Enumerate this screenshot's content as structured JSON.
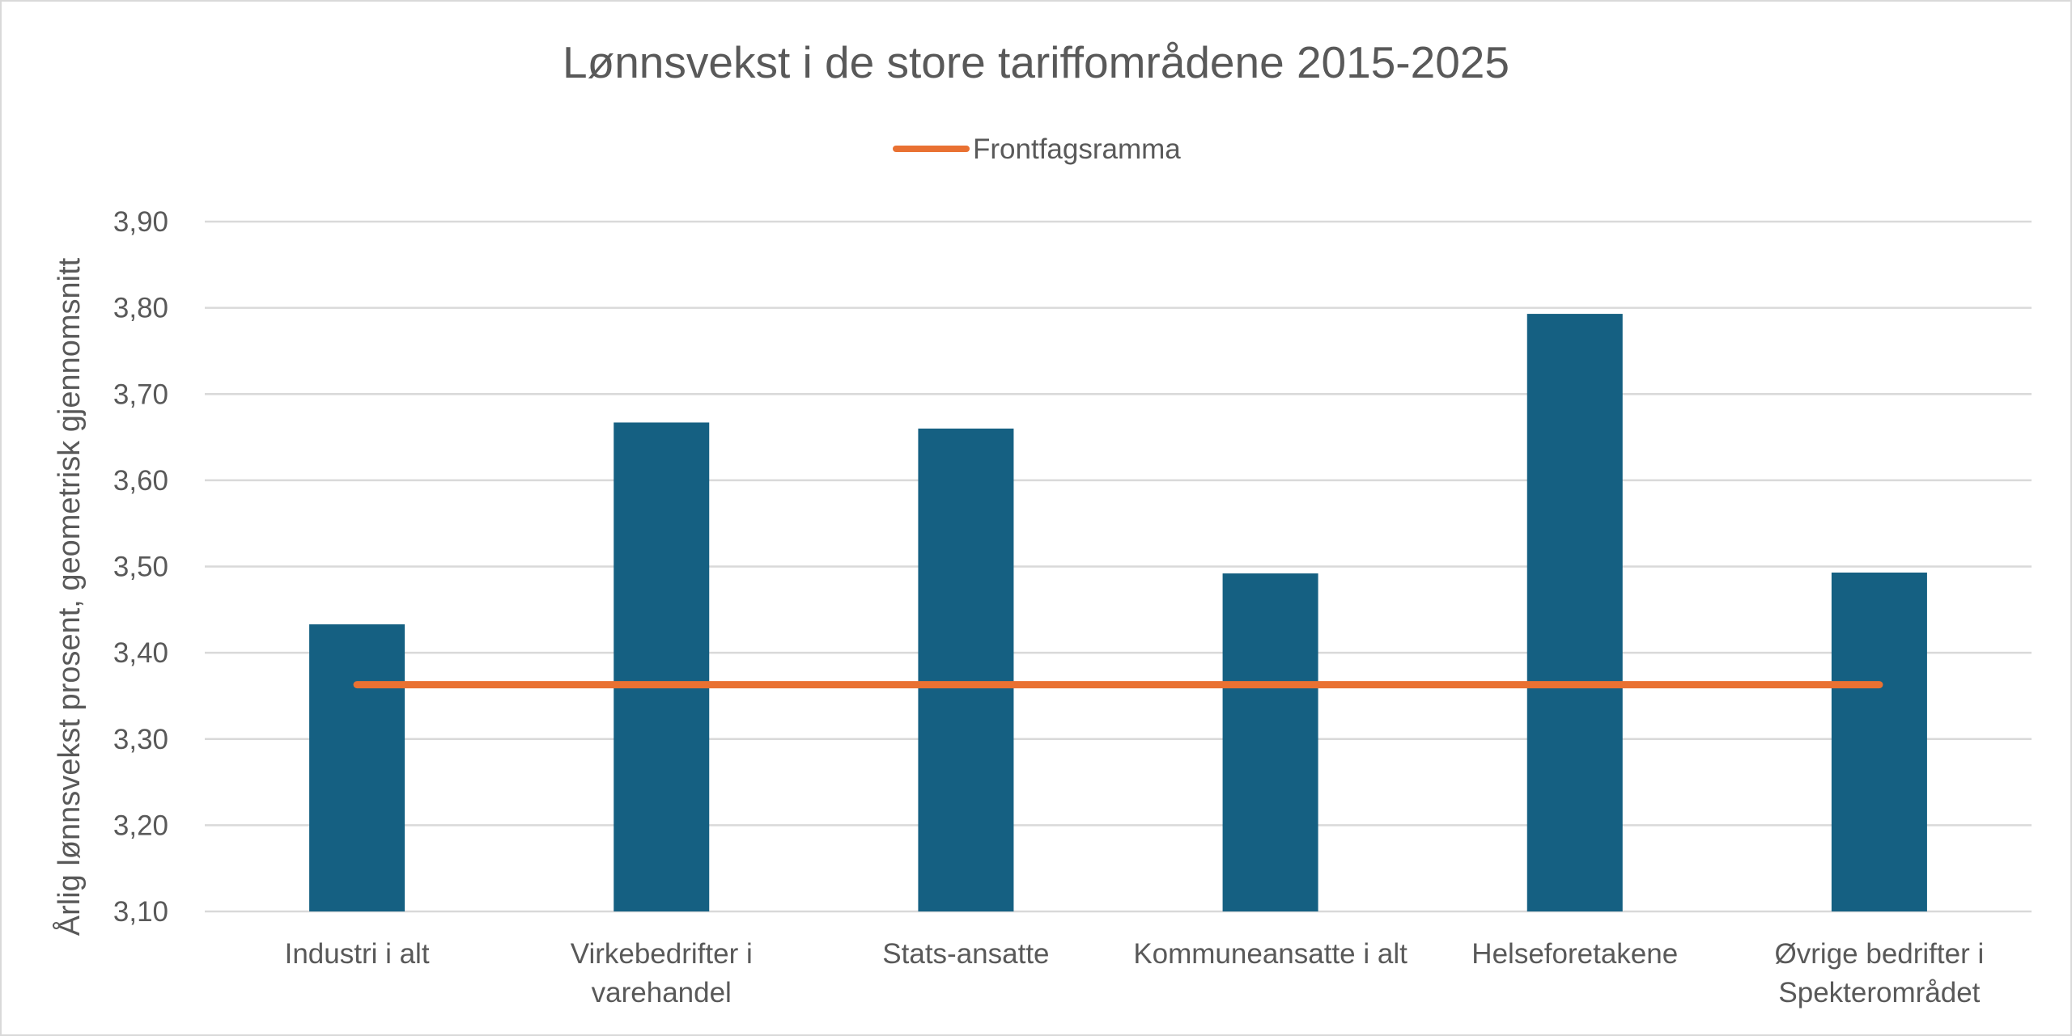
{
  "chart_data": {
    "type": "bar",
    "title": "Lønnsvekst i de store tariffområdene 2015-2025",
    "ylabel": "Årlig lønnsvekst  prosent, geometrisk gjennomsnitt",
    "xlabel": "",
    "ylim": [
      3.1,
      3.9
    ],
    "yticks": [
      "3,10",
      "3,20",
      "3,30",
      "3,40",
      "3,50",
      "3,60",
      "3,70",
      "3,80",
      "3,90"
    ],
    "categories": [
      [
        "Industri i alt"
      ],
      [
        "Virkebedrifter i",
        "varehandel"
      ],
      [
        "Stats-ansatte"
      ],
      [
        "Kommuneansatte i alt"
      ],
      [
        "Helseforetakene"
      ],
      [
        "Øvrige bedrifter i",
        "Spekterområdet"
      ]
    ],
    "series": [
      {
        "type": "bar",
        "values": [
          3.433,
          3.667,
          3.66,
          3.492,
          3.793,
          3.493
        ],
        "color": "#156082"
      },
      {
        "type": "line",
        "name": "Frontfagsramma",
        "values": [
          3.363,
          3.363,
          3.363,
          3.363,
          3.363,
          3.363
        ],
        "color": "#E97132"
      }
    ],
    "legend": {
      "position": "top",
      "entries": [
        "Frontfagsramma"
      ]
    },
    "grid": true
  }
}
